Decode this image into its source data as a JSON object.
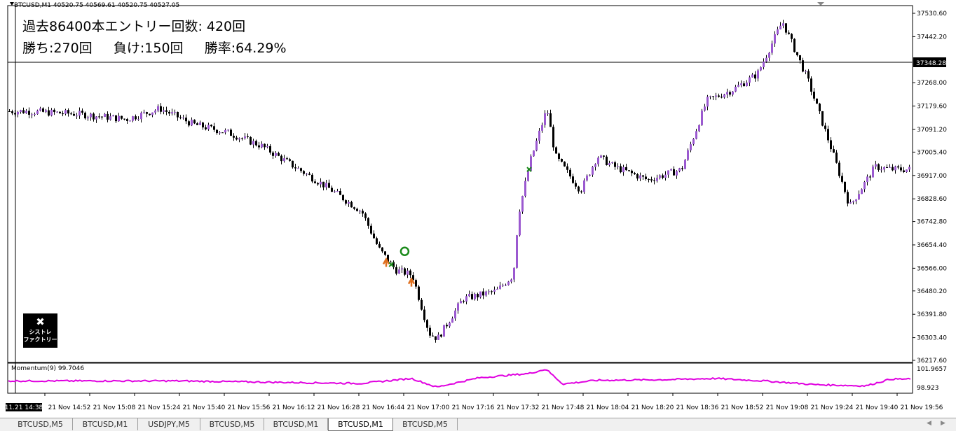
{
  "header": {
    "symbol_info": "BTCUSD,M1  40520.75 40569.61 40520.75 40527.05"
  },
  "stats": {
    "line1": "過去86400本エントリー回数: 420回",
    "line2": "勝ち:270回     負け:150回     勝率:64.29%"
  },
  "indicator": {
    "label": "Momentum(9) 99.7046",
    "axis_labels": [
      "101.9657",
      "98.923"
    ]
  },
  "logo": {
    "line1": "シストレ",
    "line2": "ファクトリー",
    "icon": "tools-icon"
  },
  "price_axis": {
    "labels": [
      "37530.60",
      "37442.20",
      "37268.00",
      "37179.60",
      "37091.20",
      "37005.40",
      "36917.00",
      "36828.60",
      "36742.80",
      "36654.40",
      "36566.00",
      "36480.20",
      "36391.80",
      "36303.40",
      "36217.60"
    ],
    "current_price": "37348.28"
  },
  "time_axis": {
    "cursor_label": "11.21 14:38",
    "labels": [
      "21 Nov 14:52",
      "21 Nov 15:08",
      "21 Nov 15:24",
      "21 Nov 15:40",
      "21 Nov 15:56",
      "21 Nov 16:12",
      "21 Nov 16:28",
      "21 Nov 16:44",
      "21 Nov 17:00",
      "21 Nov 17:16",
      "21 Nov 17:32",
      "21 Nov 17:48",
      "21 Nov 18:04",
      "21 Nov 18:20",
      "21 Nov 18:36",
      "21 Nov 18:52",
      "21 Nov 19:08",
      "21 Nov 19:24",
      "21 Nov 19:40",
      "21 Nov 19:56"
    ]
  },
  "tabs": [
    "BTCUSD,M5",
    "BTCUSD,M1",
    "USDJPY,M5",
    "BTCUSD,M5",
    "BTCUSD,M1",
    "BTCUSD,M1",
    "BTCUSD,M5"
  ],
  "active_tab_index": 5,
  "colors": {
    "bull_candle": "#9b59d0",
    "bear_candle": "#000000",
    "momentum": "#e000e0",
    "entry_arrow": "#e07020",
    "exit_cross": "#1a8a1a",
    "exit_circle": "#1a8a1a"
  },
  "chart_data": {
    "type": "candlestick",
    "ylim": [
      36217.6,
      37530.6
    ],
    "price_path": [
      [
        14.6,
        37160
      ],
      [
        14.9,
        37150
      ],
      [
        15.2,
        37130
      ],
      [
        15.4,
        37170
      ],
      [
        15.6,
        37110
      ],
      [
        15.8,
        37080
      ],
      [
        16.0,
        37030
      ],
      [
        16.2,
        36950
      ],
      [
        16.4,
        36870
      ],
      [
        16.6,
        36780
      ],
      [
        16.7,
        36640
      ],
      [
        16.8,
        36560
      ],
      [
        16.9,
        36540
      ],
      [
        17.0,
        36320
      ],
      [
        17.05,
        36300
      ],
      [
        17.2,
        36450
      ],
      [
        17.4,
        36480
      ],
      [
        17.5,
        36540
      ],
      [
        17.53,
        36770
      ],
      [
        17.6,
        36970
      ],
      [
        17.7,
        37170
      ],
      [
        17.75,
        36990
      ],
      [
        17.9,
        36860
      ],
      [
        18.0,
        36990
      ],
      [
        18.1,
        36950
      ],
      [
        18.3,
        36900
      ],
      [
        18.5,
        36940
      ],
      [
        18.65,
        37200
      ],
      [
        18.8,
        37240
      ],
      [
        18.95,
        37300
      ],
      [
        19.1,
        37500
      ],
      [
        19.25,
        37280
      ],
      [
        19.4,
        37000
      ],
      [
        19.5,
        36800
      ],
      [
        19.65,
        36950
      ],
      [
        19.75,
        36940
      ]
    ],
    "momentum_path": [
      [
        14.6,
        100.0
      ],
      [
        15.5,
        100.0
      ],
      [
        16.6,
        99.6
      ],
      [
        16.9,
        100.4
      ],
      [
        17.05,
        99.0
      ],
      [
        17.3,
        100.5
      ],
      [
        17.6,
        101.2
      ],
      [
        17.7,
        101.9
      ],
      [
        17.8,
        99.5
      ],
      [
        18.0,
        100.1
      ],
      [
        18.4,
        100.2
      ],
      [
        18.7,
        100.4
      ],
      [
        19.0,
        100.0
      ],
      [
        19.3,
        99.4
      ],
      [
        19.6,
        99.2
      ],
      [
        19.75,
        100.3
      ]
    ],
    "entries": [
      [
        16.75,
        36590
      ],
      [
        16.9,
        36515
      ]
    ],
    "exits": [
      [
        16.78,
        36580
      ],
      [
        17.6,
        36940
      ]
    ],
    "exit_circles": [
      [
        16.86,
        36630
      ]
    ]
  }
}
